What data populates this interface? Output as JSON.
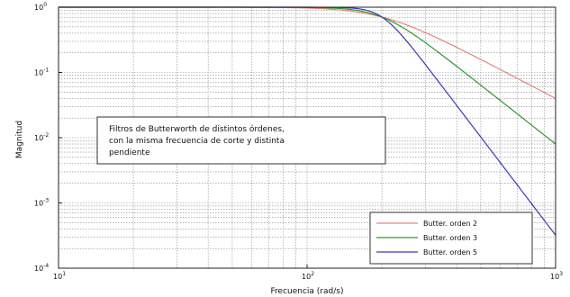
{
  "chart_data": {
    "type": "line",
    "title": "",
    "xlabel": "Frecuencia (rad/s)",
    "ylabel": "Magnitud",
    "xscale": "log",
    "yscale": "log",
    "xlim": [
      10,
      1000
    ],
    "ylim": [
      0.0001,
      1
    ],
    "x_ticks": [
      {
        "base": "10",
        "exp": "1",
        "value": 10
      },
      {
        "base": "10",
        "exp": "2",
        "value": 100
      },
      {
        "base": "10",
        "exp": "3",
        "value": 1000
      }
    ],
    "y_ticks": [
      {
        "base": "10",
        "exp": "0",
        "value": 1
      },
      {
        "base": "10",
        "exp": "-1",
        "value": 0.1
      },
      {
        "base": "10",
        "exp": "-2",
        "value": 0.01
      },
      {
        "base": "10",
        "exp": "-3",
        "value": 0.001
      },
      {
        "base": "10",
        "exp": "-4",
        "value": 0.0001
      }
    ],
    "grid": true,
    "cutoff_frequency": 200,
    "annotation": [
      "Filtros de Butterworth de distintos órdenes,",
      "con la misma frecuencia de corte y distinta",
      "pendiente"
    ],
    "legend_position": "bottom-right",
    "series": [
      {
        "name": "Butter. orden 2",
        "order": 2,
        "color": "#e8837f"
      },
      {
        "name": "Butter. orden 3",
        "order": 3,
        "color": "#2e9a2e"
      },
      {
        "name": "Butter. orden 5",
        "order": 5,
        "color": "#3a3ab8"
      }
    ]
  }
}
